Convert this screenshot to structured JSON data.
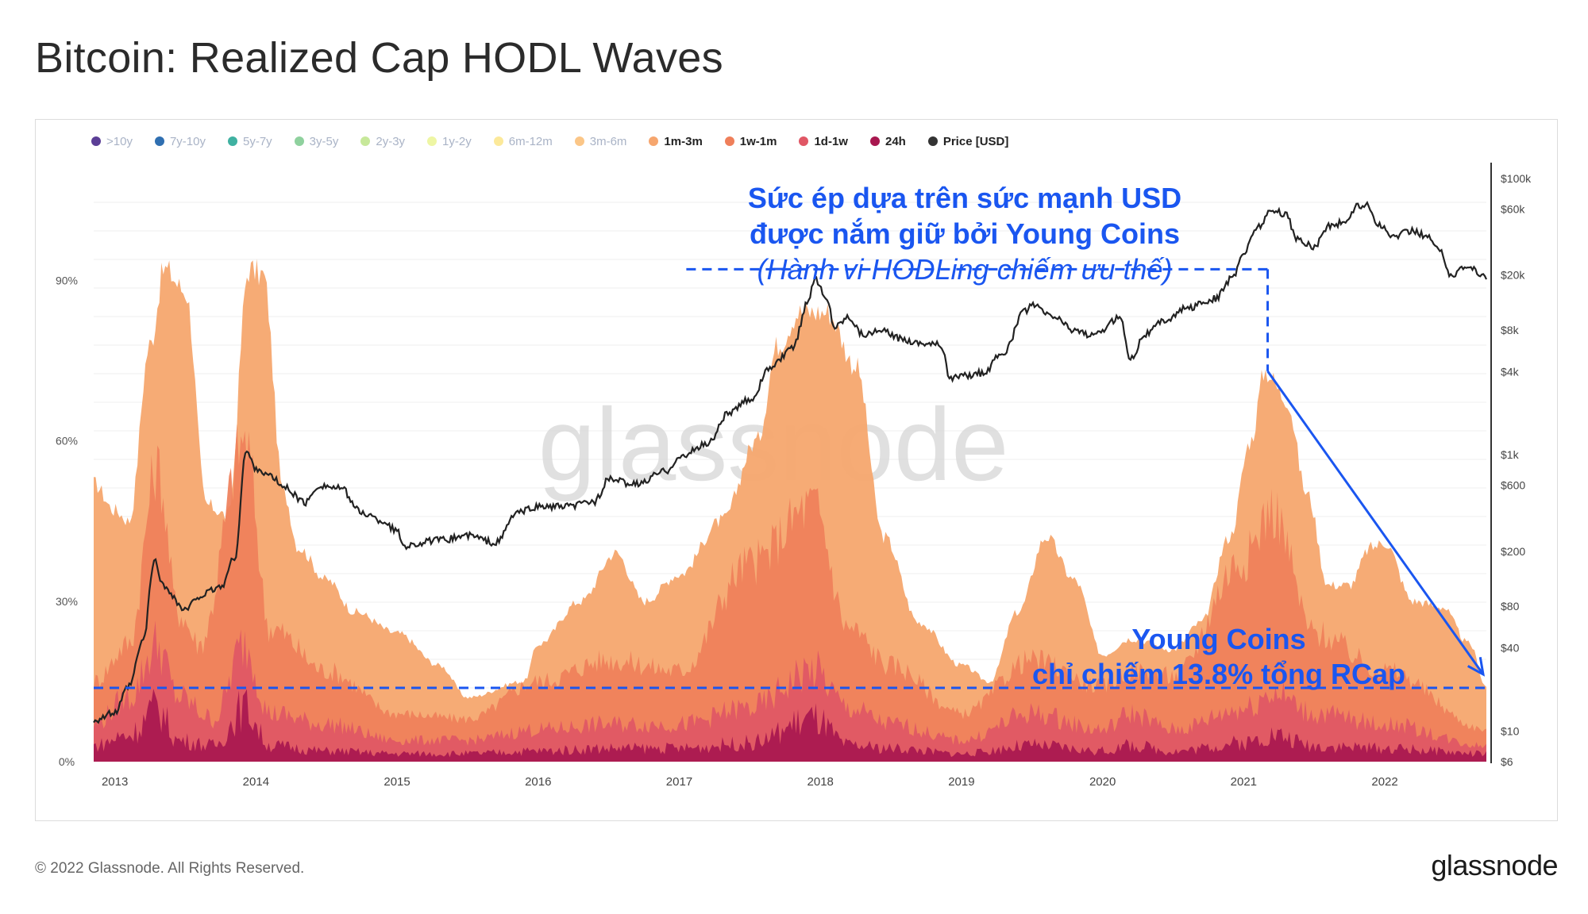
{
  "title": "Bitcoin: Realized Cap HODL Waves",
  "footer": "© 2022 Glassnode. All Rights Reserved.",
  "brand": "glassnode",
  "watermark": "glassnode",
  "legend": [
    {
      "label": ">10y",
      "color": "#5b3e96",
      "active": false
    },
    {
      "label": "7y-10y",
      "color": "#2f6fb1",
      "active": false
    },
    {
      "label": "5y-7y",
      "color": "#3fb1a1",
      "active": false
    },
    {
      "label": "3y-5y",
      "color": "#8fd19e",
      "active": false
    },
    {
      "label": "2y-3y",
      "color": "#c7e89a",
      "active": false
    },
    {
      "label": "1y-2y",
      "color": "#eef6a4",
      "active": false
    },
    {
      "label": "6m-12m",
      "color": "#fce99a",
      "active": false
    },
    {
      "label": "3m-6m",
      "color": "#fbc687",
      "active": false
    },
    {
      "label": "1m-3m",
      "color": "#f6a66e",
      "active": true
    },
    {
      "label": "1w-1m",
      "color": "#ef7f5a",
      "active": true
    },
    {
      "label": "1d-1w",
      "color": "#e05765",
      "active": true
    },
    {
      "label": "24h",
      "color": "#a8174f",
      "active": true
    },
    {
      "label": "Price [USD]",
      "color": "#333333",
      "active": true
    }
  ],
  "annotations": {
    "top_line1": "Sức ép dựa trên sức mạnh USD",
    "top_line2": "được nắm giữ bởi Young Coins",
    "top_line3": "(Hành vi HODLing chiếm ưu thế)",
    "bottom_line1": "Young Coins",
    "bottom_line2": "chỉ chiếm 13.8% tổng RCap"
  },
  "colors": {
    "annotation": "#1a56f0",
    "price_line": "#222222"
  },
  "chart_data": {
    "type": "area",
    "x_ticks": [
      "2013",
      "2014",
      "2015",
      "2016",
      "2017",
      "2018",
      "2019",
      "2020",
      "2021",
      "2022"
    ],
    "y_left_ticks": [
      "0%",
      "30%",
      "60%",
      "90%"
    ],
    "y_left_range": [
      0,
      112
    ],
    "y_right_ticks": [
      "$6",
      "$10",
      "$40",
      "$80",
      "$200",
      "$600",
      "$1k",
      "$4k",
      "$8k",
      "$20k",
      "$60k",
      "$100k"
    ],
    "y_right_scale": "log",
    "y_right_range": [
      6,
      130000
    ],
    "x_range": [
      2012.85,
      2022.72
    ],
    "stack_order_bottom_to_top": [
      "24h",
      "1d-1w",
      "1w-1m",
      "1m-3m"
    ],
    "series": [
      {
        "name": "24h",
        "points": [
          [
            2012.85,
            3
          ],
          [
            2013.1,
            5
          ],
          [
            2013.3,
            10
          ],
          [
            2013.45,
            4
          ],
          [
            2013.7,
            3
          ],
          [
            2013.92,
            10
          ],
          [
            2014.1,
            3
          ],
          [
            2014.5,
            2
          ],
          [
            2015,
            1.5
          ],
          [
            2015.5,
            1.5
          ],
          [
            2016,
            2
          ],
          [
            2016.5,
            2.5
          ],
          [
            2017,
            2.5
          ],
          [
            2017.5,
            3.5
          ],
          [
            2017.95,
            8
          ],
          [
            2018.2,
            3
          ],
          [
            2018.5,
            2.5
          ],
          [
            2019,
            1.5
          ],
          [
            2019.5,
            3
          ],
          [
            2020,
            2
          ],
          [
            2020.2,
            3
          ],
          [
            2020.5,
            2
          ],
          [
            2021,
            3.5
          ],
          [
            2021.2,
            5
          ],
          [
            2021.5,
            3
          ],
          [
            2022,
            2.5
          ],
          [
            2022.72,
            1.5
          ]
        ]
      },
      {
        "name": "1d-1w",
        "points": [
          [
            2012.85,
            7
          ],
          [
            2013.1,
            12
          ],
          [
            2013.3,
            22
          ],
          [
            2013.45,
            12
          ],
          [
            2013.7,
            8
          ],
          [
            2013.92,
            22
          ],
          [
            2014.1,
            9
          ],
          [
            2014.5,
            7
          ],
          [
            2015,
            4
          ],
          [
            2015.5,
            4
          ],
          [
            2016,
            6
          ],
          [
            2016.5,
            7
          ],
          [
            2017,
            7
          ],
          [
            2017.5,
            10
          ],
          [
            2017.95,
            17
          ],
          [
            2018.2,
            10
          ],
          [
            2018.5,
            7
          ],
          [
            2019,
            4
          ],
          [
            2019.5,
            9
          ],
          [
            2020,
            6
          ],
          [
            2020.2,
            9
          ],
          [
            2020.5,
            6
          ],
          [
            2021,
            10
          ],
          [
            2021.2,
            13
          ],
          [
            2021.5,
            9
          ],
          [
            2022,
            7
          ],
          [
            2022.72,
            3
          ]
        ]
      },
      {
        "name": "1w-1m",
        "points": [
          [
            2012.85,
            15
          ],
          [
            2013.1,
            22
          ],
          [
            2013.3,
            55
          ],
          [
            2013.45,
            28
          ],
          [
            2013.6,
            22
          ],
          [
            2013.92,
            60
          ],
          [
            2014.1,
            25
          ],
          [
            2014.5,
            17
          ],
          [
            2015,
            9
          ],
          [
            2015.5,
            8
          ],
          [
            2016,
            15
          ],
          [
            2016.5,
            19
          ],
          [
            2017,
            17
          ],
          [
            2017.5,
            37
          ],
          [
            2017.95,
            48
          ],
          [
            2018.2,
            25
          ],
          [
            2018.5,
            18
          ],
          [
            2019,
            9
          ],
          [
            2019.5,
            19
          ],
          [
            2020,
            14
          ],
          [
            2020.2,
            17
          ],
          [
            2020.5,
            16
          ],
          [
            2021,
            38
          ],
          [
            2021.2,
            47
          ],
          [
            2021.5,
            24
          ],
          [
            2022,
            17
          ],
          [
            2022.72,
            6
          ]
        ]
      },
      {
        "name": "1m-3m",
        "points": [
          [
            2012.85,
            52
          ],
          [
            2013.0,
            47
          ],
          [
            2013.1,
            45
          ],
          [
            2013.25,
            78
          ],
          [
            2013.35,
            92
          ],
          [
            2013.5,
            88
          ],
          [
            2013.65,
            48
          ],
          [
            2013.8,
            46
          ],
          [
            2013.95,
            92
          ],
          [
            2014.05,
            91
          ],
          [
            2014.2,
            50
          ],
          [
            2014.3,
            40
          ],
          [
            2014.5,
            34
          ],
          [
            2014.7,
            28
          ],
          [
            2015,
            24
          ],
          [
            2015.3,
            18
          ],
          [
            2015.5,
            12
          ],
          [
            2015.9,
            15
          ],
          [
            2016,
            22
          ],
          [
            2016.3,
            30
          ],
          [
            2016.55,
            39
          ],
          [
            2016.75,
            30
          ],
          [
            2017,
            35
          ],
          [
            2017.3,
            45
          ],
          [
            2017.55,
            60
          ],
          [
            2017.7,
            78
          ],
          [
            2017.85,
            84
          ],
          [
            2018.05,
            84
          ],
          [
            2018.25,
            74
          ],
          [
            2018.45,
            42
          ],
          [
            2018.7,
            26
          ],
          [
            2019,
            18
          ],
          [
            2019.2,
            15
          ],
          [
            2019.4,
            28
          ],
          [
            2019.6,
            42
          ],
          [
            2019.8,
            34
          ],
          [
            2020,
            20
          ],
          [
            2020.2,
            23
          ],
          [
            2020.5,
            21
          ],
          [
            2020.7,
            26
          ],
          [
            2020.9,
            42
          ],
          [
            2021.05,
            60
          ],
          [
            2021.15,
            73
          ],
          [
            2021.3,
            68
          ],
          [
            2021.45,
            50
          ],
          [
            2021.6,
            33
          ],
          [
            2021.75,
            33
          ],
          [
            2021.9,
            40
          ],
          [
            2022,
            41
          ],
          [
            2022.2,
            30
          ],
          [
            2022.4,
            29
          ],
          [
            2022.6,
            22
          ],
          [
            2022.72,
            14
          ]
        ]
      },
      {
        "name": "Price [USD]",
        "points": [
          [
            2012.85,
            12
          ],
          [
            2013.0,
            13.5
          ],
          [
            2013.1,
            21
          ],
          [
            2013.2,
            45
          ],
          [
            2013.28,
            170
          ],
          [
            2013.35,
            110
          ],
          [
            2013.5,
            75
          ],
          [
            2013.6,
            95
          ],
          [
            2013.75,
            110
          ],
          [
            2013.85,
            180
          ],
          [
            2013.93,
            1050
          ],
          [
            2014.0,
            800
          ],
          [
            2014.1,
            700
          ],
          [
            2014.2,
            580
          ],
          [
            2014.35,
            450
          ],
          [
            2014.45,
            600
          ],
          [
            2014.6,
            570
          ],
          [
            2014.75,
            380
          ],
          [
            2014.9,
            330
          ],
          [
            2015.0,
            280
          ],
          [
            2015.05,
            220
          ],
          [
            2015.3,
            240
          ],
          [
            2015.5,
            260
          ],
          [
            2015.7,
            230
          ],
          [
            2015.85,
            380
          ],
          [
            2016.0,
            420
          ],
          [
            2016.2,
            420
          ],
          [
            2016.4,
            460
          ],
          [
            2016.5,
            660
          ],
          [
            2016.7,
            610
          ],
          [
            2016.9,
            760
          ],
          [
            2017.0,
            950
          ],
          [
            2017.2,
            1200
          ],
          [
            2017.35,
            2000
          ],
          [
            2017.5,
            2500
          ],
          [
            2017.65,
            4300
          ],
          [
            2017.8,
            5800
          ],
          [
            2017.92,
            13500
          ],
          [
            2017.96,
            19000
          ],
          [
            2018.05,
            13000
          ],
          [
            2018.1,
            8500
          ],
          [
            2018.2,
            10000
          ],
          [
            2018.3,
            7500
          ],
          [
            2018.45,
            7800
          ],
          [
            2018.55,
            7000
          ],
          [
            2018.7,
            6500
          ],
          [
            2018.85,
            6300
          ],
          [
            2018.92,
            3600
          ],
          [
            2019.0,
            3700
          ],
          [
            2019.15,
            3900
          ],
          [
            2019.3,
            5500
          ],
          [
            2019.45,
            11000
          ],
          [
            2019.5,
            12000
          ],
          [
            2019.65,
            10000
          ],
          [
            2019.8,
            8000
          ],
          [
            2019.95,
            7200
          ],
          [
            2020.0,
            8000
          ],
          [
            2020.12,
            10000
          ],
          [
            2020.2,
            5000
          ],
          [
            2020.3,
            7500
          ],
          [
            2020.45,
            9500
          ],
          [
            2020.6,
            11500
          ],
          [
            2020.8,
            13500
          ],
          [
            2020.92,
            19000
          ],
          [
            2021.0,
            29000
          ],
          [
            2021.1,
            45000
          ],
          [
            2021.2,
            58000
          ],
          [
            2021.3,
            55000
          ],
          [
            2021.38,
            36000
          ],
          [
            2021.5,
            32000
          ],
          [
            2021.6,
            45000
          ],
          [
            2021.72,
            48000
          ],
          [
            2021.8,
            62000
          ],
          [
            2021.87,
            65000
          ],
          [
            2021.95,
            47000
          ],
          [
            2022.05,
            38000
          ],
          [
            2022.2,
            42000
          ],
          [
            2022.3,
            38000
          ],
          [
            2022.4,
            29000
          ],
          [
            2022.47,
            20000
          ],
          [
            2022.6,
            23000
          ],
          [
            2022.72,
            19300
          ]
        ]
      }
    ],
    "reference_levels": {
      "young_coins_share_pct": 13.8,
      "highlight_peak_year": 2021.15,
      "highlight_peak_pct": 73,
      "top_dashed_line_price": 22000,
      "top_dashed_line_x_range": [
        2017.05,
        2021.17
      ]
    }
  }
}
